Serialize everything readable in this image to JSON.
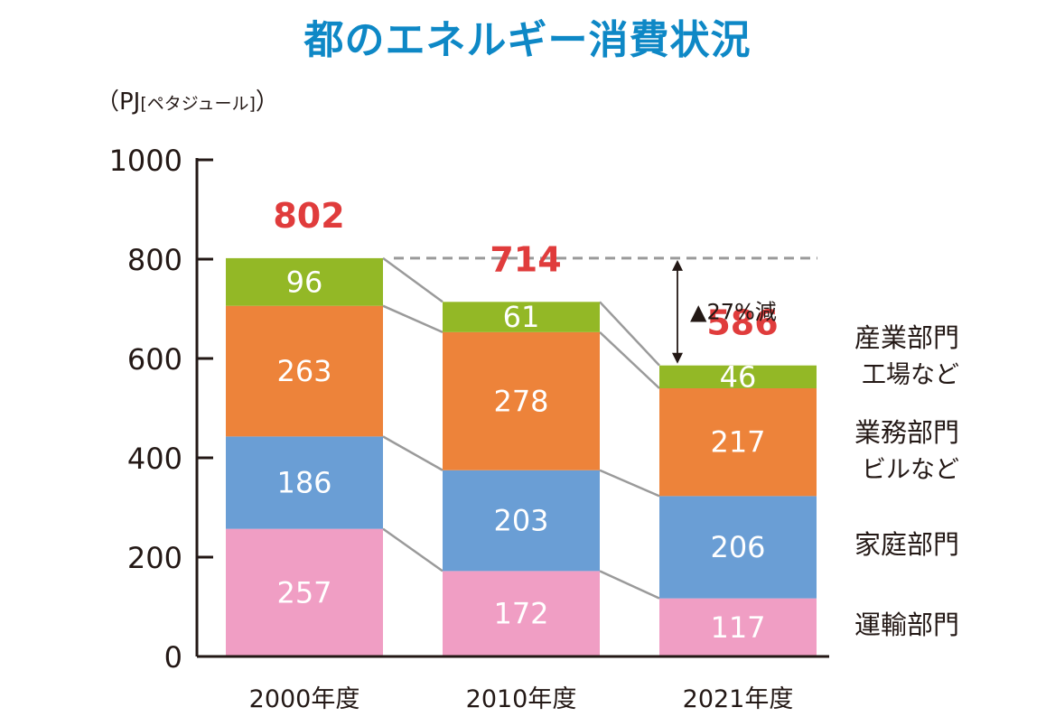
{
  "title": "都のエネルギー消費状況",
  "unit_main": "（PJ",
  "unit_bracket": "[ペタジュール]",
  "unit_close": "）",
  "colors": {
    "industry": "#93b826",
    "business": "#ed833a",
    "household": "#6a9ed5",
    "transport": "#f09ec4",
    "total": "#e03c3c",
    "axis": "#231815",
    "connector": "#9a9a9a"
  },
  "reduction": {
    "marker": "▲",
    "text": "27%減"
  },
  "legend": [
    {
      "label": "産業部門",
      "sub": "工場など"
    },
    {
      "label": "業務部門",
      "sub": "ビルなど"
    },
    {
      "label": "家庭部門",
      "sub": ""
    },
    {
      "label": "運輸部門",
      "sub": ""
    }
  ],
  "chart_data": {
    "type": "bar",
    "stacked": true,
    "categories": [
      "2000年度",
      "2010年度",
      "2021年度"
    ],
    "series": [
      {
        "name": "運輸部門",
        "values": [
          257,
          172,
          117
        ]
      },
      {
        "name": "家庭部門",
        "values": [
          186,
          203,
          206
        ]
      },
      {
        "name": "業務部門",
        "values": [
          263,
          278,
          217
        ]
      },
      {
        "name": "産業部門",
        "values": [
          96,
          61,
          46
        ]
      }
    ],
    "totals": [
      802,
      714,
      586
    ],
    "ylim": [
      0,
      1000
    ],
    "yticks": [
      0,
      200,
      400,
      600,
      800,
      1000
    ],
    "grid": false,
    "reference_line": 802
  }
}
